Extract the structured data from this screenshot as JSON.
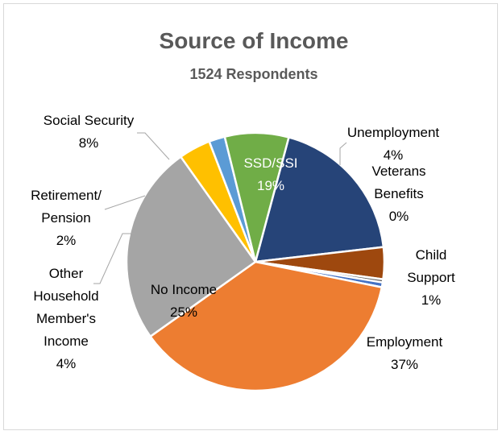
{
  "chart_data": {
    "type": "pie",
    "title": "Source of Income",
    "subtitle": "1524 Respondents",
    "slices": [
      {
        "label": "SSD/SSI",
        "value": 19,
        "display": "19%",
        "color": "#264478"
      },
      {
        "label": "Unemployment",
        "value": 4,
        "display": "4%",
        "color": "#9e480e"
      },
      {
        "label": "Veterans Benefits",
        "value": 0.4,
        "display": "0%",
        "color": "#636363"
      },
      {
        "label": "Child Support",
        "value": 0.6,
        "display": "1%",
        "color": "#4472c4"
      },
      {
        "label": "Employment",
        "value": 37,
        "display": "37%",
        "color": "#ed7d31"
      },
      {
        "label": "No Income",
        "value": 25,
        "display": "25%",
        "color": "#a5a5a5"
      },
      {
        "label": "Other Household Member's Income",
        "value": 4,
        "display": "4%",
        "color": "#ffc000"
      },
      {
        "label": "Retirement/ Pension",
        "value": 2,
        "display": "2%",
        "color": "#5b9bd5"
      },
      {
        "label": "Social Security",
        "value": 8,
        "display": "8%",
        "color": "#70ad47"
      }
    ],
    "legend": "none"
  }
}
